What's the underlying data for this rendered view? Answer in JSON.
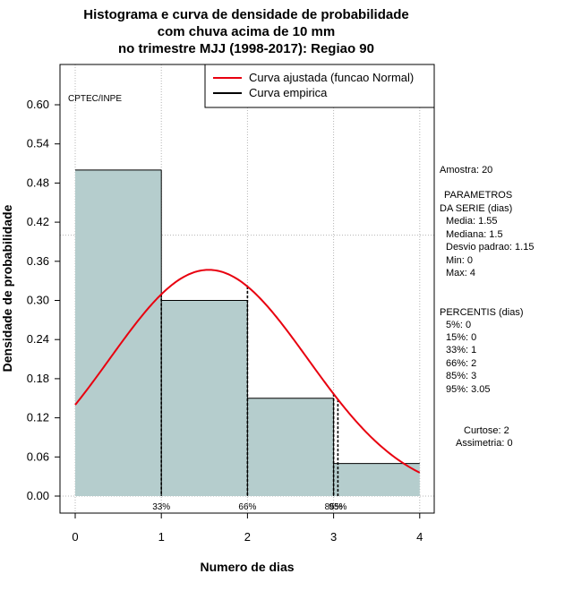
{
  "chart_data": {
    "type": "bar",
    "title": [
      "Histograma e curva de densidade de probabilidade",
      "com chuva acima de 10 mm",
      "no trimestre MJJ (1998-2017): Regiao 90"
    ],
    "xlabel": "Numero de dias",
    "ylabel": "Densidade de probabilidade",
    "xlim": [
      -0.2,
      4.15
    ],
    "ylim": [
      0,
      0.66
    ],
    "xticks": [
      0,
      1,
      2,
      3,
      4
    ],
    "yticks": [
      0.0,
      0.06,
      0.12,
      0.18,
      0.24,
      0.3,
      0.36,
      0.42,
      0.48,
      0.54,
      0.6
    ],
    "bins": [
      {
        "from": 0,
        "to": 1,
        "value": 0.5
      },
      {
        "from": 1,
        "to": 2,
        "value": 0.3
      },
      {
        "from": 2,
        "to": 3,
        "value": 0.15
      },
      {
        "from": 3,
        "to": 4,
        "value": 0.05
      }
    ],
    "normal_curve": {
      "mean": 1.55,
      "sd": 1.15,
      "x_from": 0,
      "x_to": 4
    },
    "reference_line_y": 0.4,
    "percentile_lines": [
      {
        "x": 1,
        "label": "33%"
      },
      {
        "x": 2,
        "label": "66%"
      },
      {
        "x": 3,
        "label": "85%"
      },
      {
        "x": 3.05,
        "label": "95%"
      }
    ],
    "legend": [
      "Curva ajustada (funcao Normal)",
      "Curva empirica"
    ],
    "colors": {
      "bar_fill": "#b5cdcd",
      "curve": "#e8000f",
      "grid": "#b4b4b4"
    },
    "annotation": "CPTEC/INPE"
  },
  "side_panel": {
    "sample": "Amostra: 20",
    "params_heading_1": "PARAMETROS",
    "params_heading_2": "DA SERIE (dias)",
    "params": [
      "Media: 1.55",
      "Mediana: 1.5",
      "Desvio padrao: 1.15",
      "Min: 0",
      "Max: 4"
    ],
    "percentiles_heading": "PERCENTIS (dias)",
    "percentiles": [
      "5%: 0",
      "15%: 0",
      "33%: 1",
      "66%: 2",
      "85%: 3",
      "95%: 3.05"
    ],
    "kurtosis": "Curtose: 2",
    "skewness": "Assimetria: 0"
  }
}
